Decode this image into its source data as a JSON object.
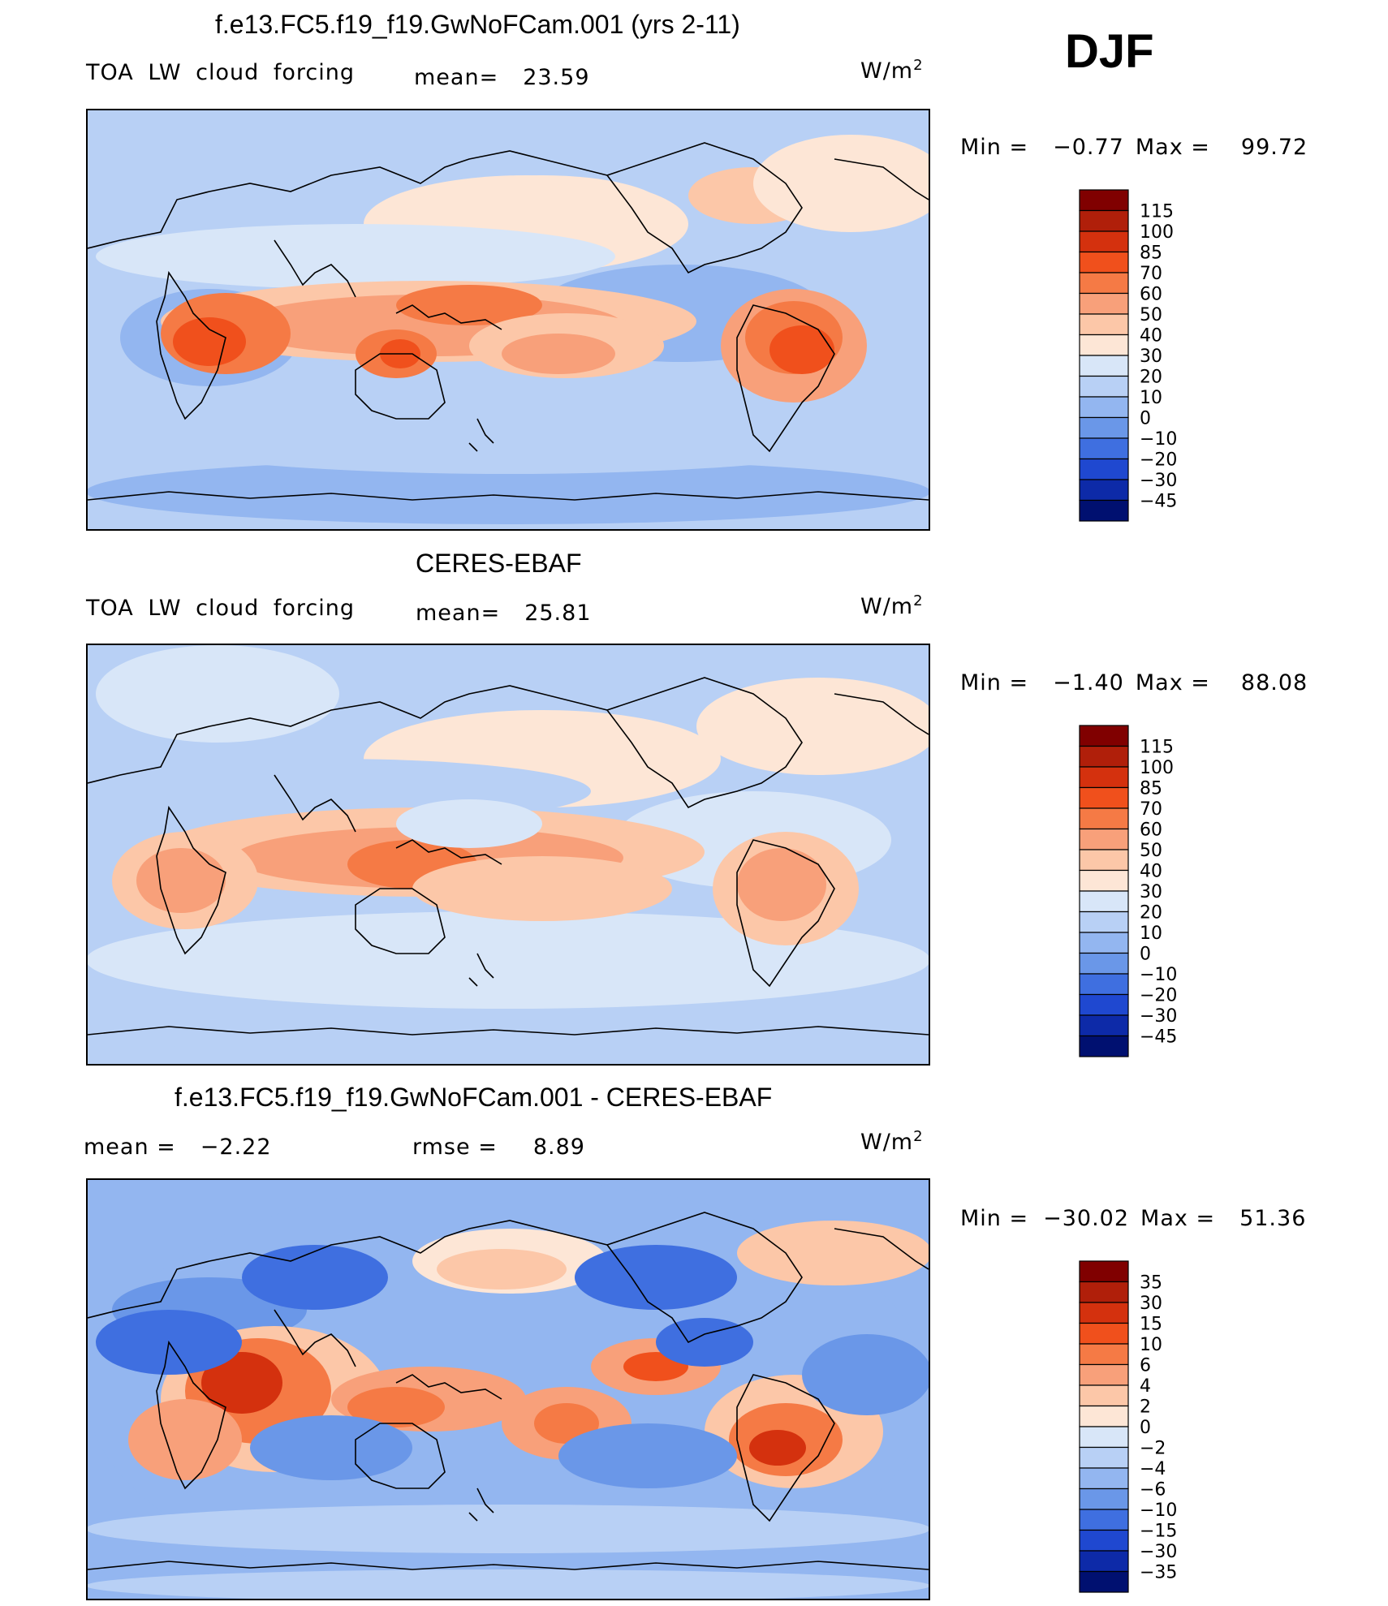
{
  "season": "DJF",
  "panels": [
    {
      "title": "f.e13.FC5.f19_f19.GwNoFCam.001 (yrs 2-11)",
      "left_label": "TOA LW cloud forcing",
      "stat1_label": "mean=",
      "stat1_value": "23.59",
      "units": "W/m",
      "units_exp": "2",
      "min_label": "Min =",
      "min_value": "−0.77",
      "max_label": "Max =",
      "max_value": "99.72"
    },
    {
      "title": "CERES-EBAF",
      "left_label": "TOA LW cloud forcing",
      "stat1_label": "mean=",
      "stat1_value": "25.81",
      "units": "W/m",
      "units_exp": "2",
      "min_label": "Min =",
      "min_value": "−1.40",
      "max_label": "Max =",
      "max_value": "88.08"
    },
    {
      "title": "f.e13.FC5.f19_f19.GwNoFCam.001 - CERES-EBAF",
      "left_label": "",
      "stat1_label": "mean =",
      "stat1_value": "−2.22",
      "stat2_label": "rmse =",
      "stat2_value": "8.89",
      "units": "W/m",
      "units_exp": "2",
      "min_label": "Min =",
      "min_value": "−30.02",
      "max_label": "Max =",
      "max_value": "51.36"
    }
  ],
  "chart_data": [
    {
      "type": "heatmap",
      "title": "f.e13.FC5.f19_f19.GwNoFCam.001 (yrs 2-11)",
      "variable": "TOA LW cloud forcing",
      "units": "W/m2",
      "mean": 23.59,
      "min": -0.77,
      "max": 99.72,
      "colorbar_levels": [
        115,
        100,
        85,
        70,
        60,
        50,
        40,
        30,
        20,
        10,
        0,
        -10,
        -20,
        -30,
        -45
      ],
      "colorbar_colors": [
        "#800000",
        "#b01f0a",
        "#d4310e",
        "#f0501c",
        "#f57a45",
        "#f8a07a",
        "#fcc7a8",
        "#fde6d6",
        "#d8e6f8",
        "#b8d0f5",
        "#93b6f0",
        "#6a97e8",
        "#3f6fe0",
        "#1f48d0",
        "#0d2aa8",
        "#001070"
      ],
      "grid": false
    },
    {
      "type": "heatmap",
      "title": "CERES-EBAF",
      "variable": "TOA LW cloud forcing",
      "units": "W/m2",
      "mean": 25.81,
      "min": -1.4,
      "max": 88.08,
      "colorbar_levels": [
        115,
        100,
        85,
        70,
        60,
        50,
        40,
        30,
        20,
        10,
        0,
        -10,
        -20,
        -30,
        -45
      ],
      "colorbar_colors": [
        "#800000",
        "#b01f0a",
        "#d4310e",
        "#f0501c",
        "#f57a45",
        "#f8a07a",
        "#fcc7a8",
        "#fde6d6",
        "#d8e6f8",
        "#b8d0f5",
        "#93b6f0",
        "#6a97e8",
        "#3f6fe0",
        "#1f48d0",
        "#0d2aa8",
        "#001070"
      ],
      "grid": false
    },
    {
      "type": "heatmap",
      "title": "f.e13.FC5.f19_f19.GwNoFCam.001 - CERES-EBAF",
      "units": "W/m2",
      "mean": -2.22,
      "rmse": 8.89,
      "min": -30.02,
      "max": 51.36,
      "colorbar_levels": [
        35,
        30,
        15,
        10,
        6,
        4,
        2,
        0,
        -2,
        -4,
        -6,
        -10,
        -15,
        -30,
        -35
      ],
      "colorbar_colors": [
        "#800000",
        "#b01f0a",
        "#d4310e",
        "#f0501c",
        "#f57a45",
        "#f8a07a",
        "#fcc7a8",
        "#fde6d6",
        "#d8e6f8",
        "#b8d0f5",
        "#93b6f0",
        "#6a97e8",
        "#3f6fe0",
        "#1f48d0",
        "#0d2aa8",
        "#001070"
      ],
      "grid": false
    }
  ]
}
